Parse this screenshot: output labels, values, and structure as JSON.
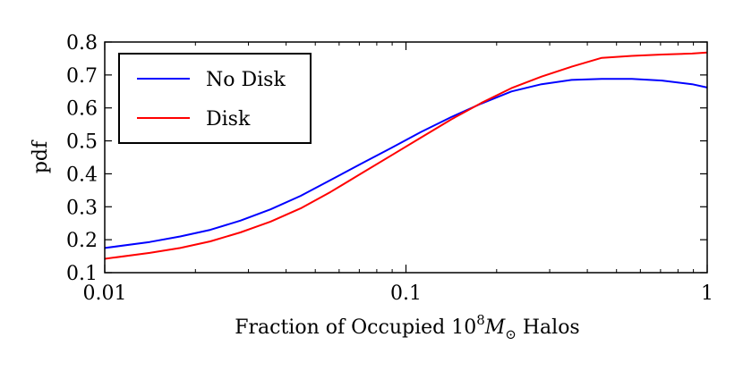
{
  "chart_data": {
    "type": "line",
    "title": "",
    "xlabel": "Fraction of Occupied 10",
    "xlabel_sup": "8",
    "xlabel_math": "M",
    "xlabel_sub": "⊙",
    "xlabel_tail": " Halos",
    "ylabel": "pdf",
    "xscale": "log",
    "xlim": [
      0.01,
      1
    ],
    "ylim": [
      0.1,
      0.8
    ],
    "x_ticks": [
      0.01,
      0.1,
      1
    ],
    "x_tick_labels": [
      "0.01",
      "0.1",
      "1"
    ],
    "y_ticks": [
      0.1,
      0.2,
      0.3,
      0.4,
      0.5,
      0.6,
      0.7,
      0.8
    ],
    "y_tick_labels": [
      "0.1",
      "0.2",
      "0.3",
      "0.4",
      "0.5",
      "0.6",
      "0.7",
      "0.8"
    ],
    "legend_position": "top-left",
    "series": [
      {
        "name": "No Disk",
        "color": "#0000ff",
        "x": [
          0.01,
          0.0141,
          0.0178,
          0.0224,
          0.0282,
          0.0355,
          0.0447,
          0.0562,
          0.0708,
          0.0891,
          0.1122,
          0.1413,
          0.1778,
          0.2239,
          0.2818,
          0.3548,
          0.4467,
          0.5623,
          0.7079,
          0.8913,
          1.0
        ],
        "values": [
          0.175,
          0.193,
          0.21,
          0.23,
          0.258,
          0.292,
          0.333,
          0.381,
          0.43,
          0.478,
          0.527,
          0.572,
          0.613,
          0.65,
          0.672,
          0.685,
          0.688,
          0.688,
          0.683,
          0.672,
          0.662
        ]
      },
      {
        "name": "Disk",
        "color": "#ff0000",
        "x": [
          0.01,
          0.0141,
          0.0178,
          0.0224,
          0.0282,
          0.0355,
          0.0447,
          0.0562,
          0.0708,
          0.0891,
          0.1122,
          0.1413,
          0.1778,
          0.2239,
          0.2818,
          0.3548,
          0.4467,
          0.5623,
          0.7079,
          0.8913,
          1.0
        ],
        "values": [
          0.142,
          0.16,
          0.175,
          0.195,
          0.222,
          0.255,
          0.295,
          0.345,
          0.4,
          0.455,
          0.51,
          0.565,
          0.615,
          0.66,
          0.695,
          0.725,
          0.752,
          0.758,
          0.762,
          0.765,
          0.768
        ]
      }
    ]
  }
}
